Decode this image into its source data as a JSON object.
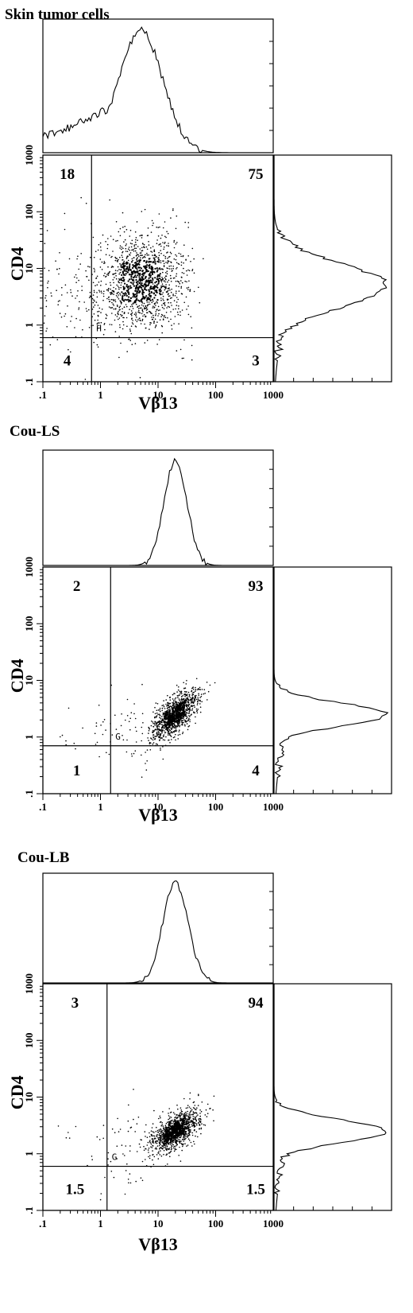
{
  "chart_data": [
    {
      "type": "scatter",
      "title": "Skin tumor cells",
      "xlabel": "Vβ13",
      "ylabel": "CD4",
      "x_scale": "log",
      "y_scale": "log",
      "xlim": [
        0.1,
        1000
      ],
      "ylim": [
        0.1,
        1000
      ],
      "x_ticks": [
        ".1",
        "1",
        "10",
        "100",
        "1000"
      ],
      "y_ticks": [
        ".1",
        "1",
        "10",
        "100",
        "1000"
      ],
      "quadrant_values": {
        "upper_left": "18",
        "upper_right": "75",
        "lower_left": "4",
        "lower_right": "3"
      },
      "gate_label": "H",
      "x_gate": 0.7,
      "y_gate": 0.6,
      "cluster": {
        "center_x": 5,
        "center_y": 6,
        "spread_x_log": 0.38,
        "spread_y_log": 0.42,
        "correlation": 0.1
      },
      "histogram_x_peak": 5,
      "histogram_y_peak": 5
    },
    {
      "type": "scatter",
      "title": "Cou-LS",
      "xlabel": "Vβ13",
      "ylabel": "CD4",
      "x_scale": "log",
      "y_scale": "log",
      "xlim": [
        0.1,
        1000
      ],
      "ylim": [
        0.1,
        1000
      ],
      "x_ticks": [
        ".1",
        "1",
        "10",
        "100",
        "1000"
      ],
      "y_ticks": [
        ".1",
        "1",
        "10",
        "100",
        "1000"
      ],
      "quadrant_values": {
        "upper_left": "2",
        "upper_right": "93",
        "lower_left": "1",
        "lower_right": "4"
      },
      "gate_label": "G",
      "x_gate": 1.5,
      "y_gate": 0.7,
      "cluster": {
        "center_x": 20,
        "center_y": 2.5,
        "spread_x_log": 0.2,
        "spread_y_log": 0.22,
        "correlation": 0.65
      },
      "histogram_x_peak": 20,
      "histogram_y_peak": 2.5
    },
    {
      "type": "scatter",
      "title": "Cou-LB",
      "xlabel": "Vβ13",
      "ylabel": "CD4",
      "x_scale": "log",
      "y_scale": "log",
      "xlim": [
        0.1,
        1000
      ],
      "ylim": [
        0.1,
        1000
      ],
      "x_ticks": [
        ".1",
        "1",
        "10",
        "100",
        "1000"
      ],
      "y_ticks": [
        ".1",
        "1",
        "10",
        "100",
        "1000"
      ],
      "quadrant_values": {
        "upper_left": "3",
        "upper_right": "94",
        "lower_left": "1.5",
        "lower_right": "1.5"
      },
      "gate_label": "G",
      "x_gate": 1.3,
      "y_gate": 0.6,
      "cluster": {
        "center_x": 20,
        "center_y": 2.5,
        "spread_x_log": 0.22,
        "spread_y_log": 0.2,
        "correlation": 0.6
      },
      "histogram_x_peak": 20,
      "histogram_y_peak": 2.5
    }
  ]
}
